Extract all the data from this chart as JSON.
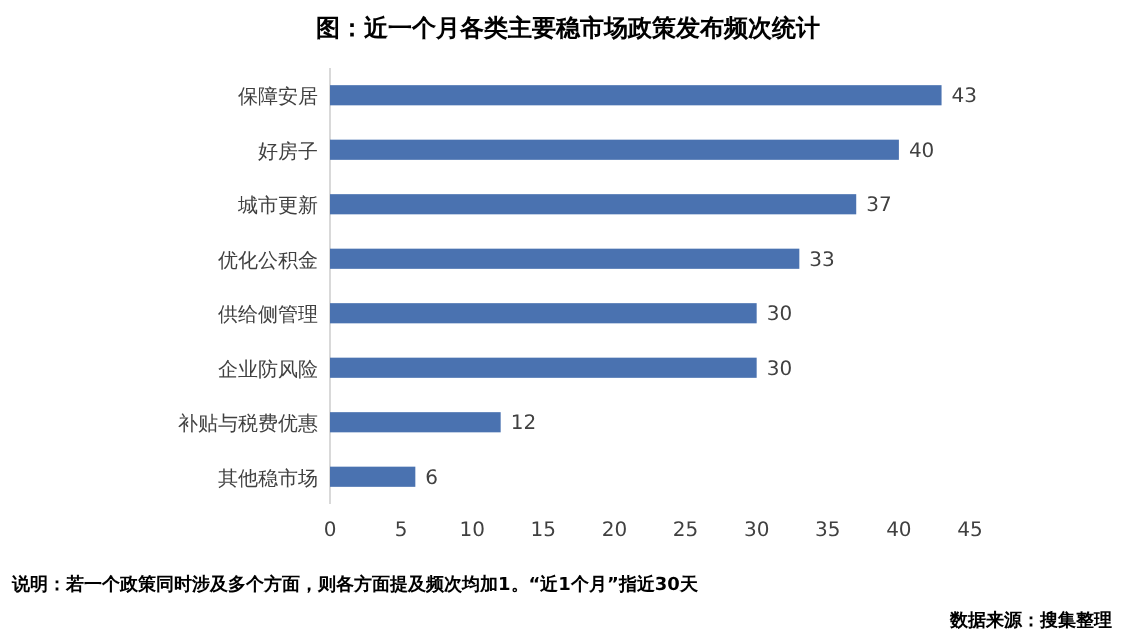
{
  "chart_data": {
    "type": "bar",
    "orientation": "horizontal",
    "title": "图：近一个月各类主要稳市场政策发布频次统计",
    "categories": [
      "保障安居",
      "好房子",
      "城市更新",
      "优化公积金",
      "供给侧管理",
      "企业防风险",
      "补贴与税费优惠",
      "其他稳市场"
    ],
    "values": [
      43,
      40,
      37,
      33,
      30,
      30,
      12,
      6
    ],
    "color": "#4a72b0",
    "xlim": [
      0,
      45
    ],
    "xticks": [
      0,
      5,
      10,
      15,
      20,
      25,
      30,
      35,
      40,
      45
    ],
    "grid": false,
    "data_labels": true,
    "annotations": [
      "说明：若一个政策同时涉及多个方面，则各方面提及频次均加1。“近1个月”指近30天",
      "数据来源：搜集整理"
    ]
  }
}
